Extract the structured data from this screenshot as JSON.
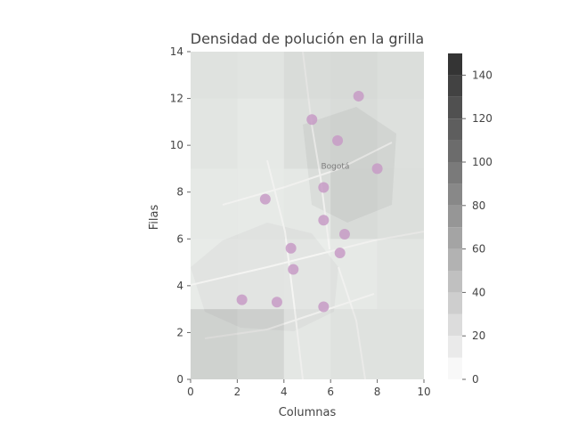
{
  "chart_data": {
    "type": "heatmap",
    "title": "Densidad de polución en la grilla",
    "xlabel": "Columnas",
    "ylabel": "Filas",
    "xlim": [
      0,
      10
    ],
    "ylim": [
      0,
      14
    ],
    "xticks": [
      0,
      2,
      4,
      6,
      8,
      10
    ],
    "yticks": [
      0,
      2,
      4,
      6,
      8,
      10,
      12,
      14
    ],
    "grid": false,
    "background": "street map of Bogotá overlaid on the grid",
    "map_labels": [
      "Bogotá"
    ],
    "cells": [
      {
        "x": [
          0,
          2
        ],
        "y": [
          0,
          3
        ],
        "value": 62
      },
      {
        "x": [
          2,
          4
        ],
        "y": [
          0,
          3
        ],
        "value": 52
      },
      {
        "x": [
          4,
          6
        ],
        "y": [
          0,
          3
        ],
        "value": 18
      },
      {
        "x": [
          6,
          10
        ],
        "y": [
          0,
          3
        ],
        "value": 28
      },
      {
        "x": [
          0,
          2
        ],
        "y": [
          3,
          6
        ],
        "value": 10
      },
      {
        "x": [
          2,
          4
        ],
        "y": [
          3,
          6
        ],
        "value": 8
      },
      {
        "x": [
          4,
          6
        ],
        "y": [
          3,
          6
        ],
        "value": 6
      },
      {
        "x": [
          6,
          8
        ],
        "y": [
          3,
          6
        ],
        "value": 14
      },
      {
        "x": [
          8,
          10
        ],
        "y": [
          3,
          6
        ],
        "value": 22
      },
      {
        "x": [
          0,
          2
        ],
        "y": [
          6,
          9
        ],
        "value": 14
      },
      {
        "x": [
          2,
          4
        ],
        "y": [
          6,
          9
        ],
        "value": 12
      },
      {
        "x": [
          4,
          6
        ],
        "y": [
          6,
          9
        ],
        "value": 16
      },
      {
        "x": [
          6,
          8
        ],
        "y": [
          6,
          9
        ],
        "value": 42
      },
      {
        "x": [
          8,
          10
        ],
        "y": [
          6,
          9
        ],
        "value": 36
      },
      {
        "x": [
          0,
          2
        ],
        "y": [
          9,
          12
        ],
        "value": 22
      },
      {
        "x": [
          2,
          4
        ],
        "y": [
          9,
          12
        ],
        "value": 14
      },
      {
        "x": [
          4,
          6
        ],
        "y": [
          9,
          12
        ],
        "value": 34
      },
      {
        "x": [
          6,
          8
        ],
        "y": [
          9,
          12
        ],
        "value": 40
      },
      {
        "x": [
          8,
          10
        ],
        "y": [
          9,
          12
        ],
        "value": 32
      },
      {
        "x": [
          0,
          2
        ],
        "y": [
          12,
          14
        ],
        "value": 28
      },
      {
        "x": [
          2,
          4
        ],
        "y": [
          12,
          14
        ],
        "value": 24
      },
      {
        "x": [
          4,
          6
        ],
        "y": [
          12,
          14
        ],
        "value": 40
      },
      {
        "x": [
          6,
          8
        ],
        "y": [
          12,
          14
        ],
        "value": 46
      },
      {
        "x": [
          8,
          10
        ],
        "y": [
          12,
          14
        ],
        "value": 38
      }
    ],
    "points": [
      {
        "x": 7.2,
        "y": 12.1
      },
      {
        "x": 5.2,
        "y": 11.1
      },
      {
        "x": 6.3,
        "y": 10.2
      },
      {
        "x": 8.0,
        "y": 9.0
      },
      {
        "x": 5.7,
        "y": 8.2
      },
      {
        "x": 3.2,
        "y": 7.7
      },
      {
        "x": 5.7,
        "y": 6.8
      },
      {
        "x": 6.6,
        "y": 6.2
      },
      {
        "x": 4.3,
        "y": 5.6
      },
      {
        "x": 6.4,
        "y": 5.4
      },
      {
        "x": 4.4,
        "y": 4.7
      },
      {
        "x": 2.2,
        "y": 3.4
      },
      {
        "x": 3.7,
        "y": 3.3
      },
      {
        "x": 5.7,
        "y": 3.1
      }
    ],
    "colorbar": {
      "min": 0,
      "max": 150,
      "ticks": [
        0,
        20,
        40,
        60,
        80,
        100,
        120,
        140
      ],
      "bands": [
        0,
        10,
        20,
        30,
        40,
        50,
        60,
        70,
        80,
        90,
        100,
        110,
        120,
        130,
        140,
        150
      ],
      "colormap": "greys"
    },
    "colors": {
      "point": "#c79bc6",
      "map_base": "#e3e8e4",
      "map_urban": "#d9dcd9",
      "map_road": "#f4f4f2",
      "text": "#444444"
    }
  }
}
